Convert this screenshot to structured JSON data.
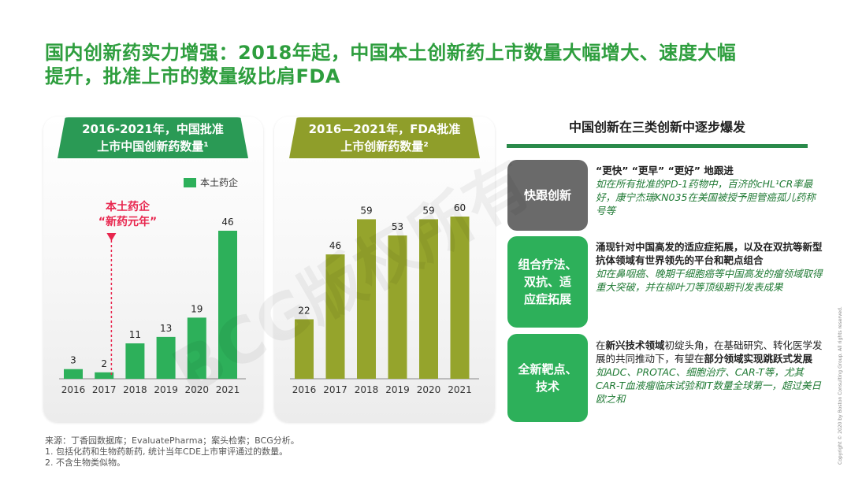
{
  "title": {
    "line1": "国内创新药实力增强：2018年起，中国本土创新药上市数量大幅增大、速度大幅",
    "line2": "提升，批准上市的数量级比肩FDA"
  },
  "watermark": "BCG版权所有",
  "left_panel": {
    "banner_line1": "2016-2021年，中国批准",
    "banner_line2": "上市中国创新药数量¹",
    "legend": "本土药企",
    "annotation_line1": "本土药企",
    "annotation_line2": "“新药元年”"
  },
  "mid_panel": {
    "banner_line1": "2016—2021年，FDA批准",
    "banner_line2": "上市创新药数量²"
  },
  "chart_data": [
    {
      "type": "bar",
      "categories": [
        "2016",
        "2017",
        "2018",
        "2019",
        "2020",
        "2021"
      ],
      "series": [
        {
          "name": "本土药企",
          "values": [
            3,
            2,
            11,
            13,
            19,
            46
          ],
          "color": "#2db05a"
        }
      ],
      "title": "2016-2021年，中国批准上市中国创新药数量¹",
      "ylim": [
        0,
        46
      ],
      "grid": false,
      "legend": "top-right",
      "annotations": [
        {
          "text": "本土药企“新药元年”",
          "x": "2018",
          "style": "dashed-arrow",
          "color": "#e8264e"
        }
      ]
    },
    {
      "type": "bar",
      "categories": [
        "2016",
        "2017",
        "2018",
        "2019",
        "2020",
        "2021"
      ],
      "series": [
        {
          "values": [
            22,
            46,
            59,
            53,
            59,
            60
          ],
          "color": "#95a42c"
        }
      ],
      "title": "2016—2021年，FDA批准上市创新药数量²",
      "ylim": [
        0,
        60
      ],
      "grid": false
    }
  ],
  "right_panel": {
    "title": "中国创新在三类创新中逐步爆发",
    "categories": [
      {
        "label_line1": "快跟创新",
        "label_line2": "",
        "label_line3": "",
        "text1": "“更快” “更早” “更好” 地跟进",
        "text2": "如在所有批准的PD-1药物中，百济的cHL¹CR率最好，康宁杰瑞KN035在美国被授予胆管癌孤儿药称号等"
      },
      {
        "label_line1": "组合疗法、",
        "label_line2": "双抗、适",
        "label_line3": "应症拓展",
        "text1": "涌现针对中国高发的适应症拓展，以及在双抗等新型抗体领域有世界领先的平台和靶点组合",
        "text2": "如在鼻咽癌、晚期干细胞癌等中国高发的瘤领域取得重大突破，并在柳叶刀等顶级期刊发表成果"
      },
      {
        "label_line1": "全新靶点、",
        "label_line2": "技术",
        "label_line3": "",
        "text1a": "在",
        "text1b": "新兴技术领域",
        "text1c": "初绽头角，在基础研究、转化医学发展的共同推动下，有望在",
        "text1d": "部分领域实现跳跃式发展",
        "text2": "如ADC、PROTAC、细胞治疗、CAR-T等，尤其CAR-T血液瘤临床试验和IT数量全球第一，超过美日欧之和"
      }
    ]
  },
  "source": {
    "line1": "来源：丁香园数据库；EvaluatePharma；案头检索；BCG分析。",
    "line2": "1. 包括化药和生物药新药, 统计当年CDE上市审评通过的数量。",
    "line3": "2. 不含生物类似物。"
  },
  "copyright": "Copyright © 2020 by Boston Consulting Group. All rights reserved."
}
